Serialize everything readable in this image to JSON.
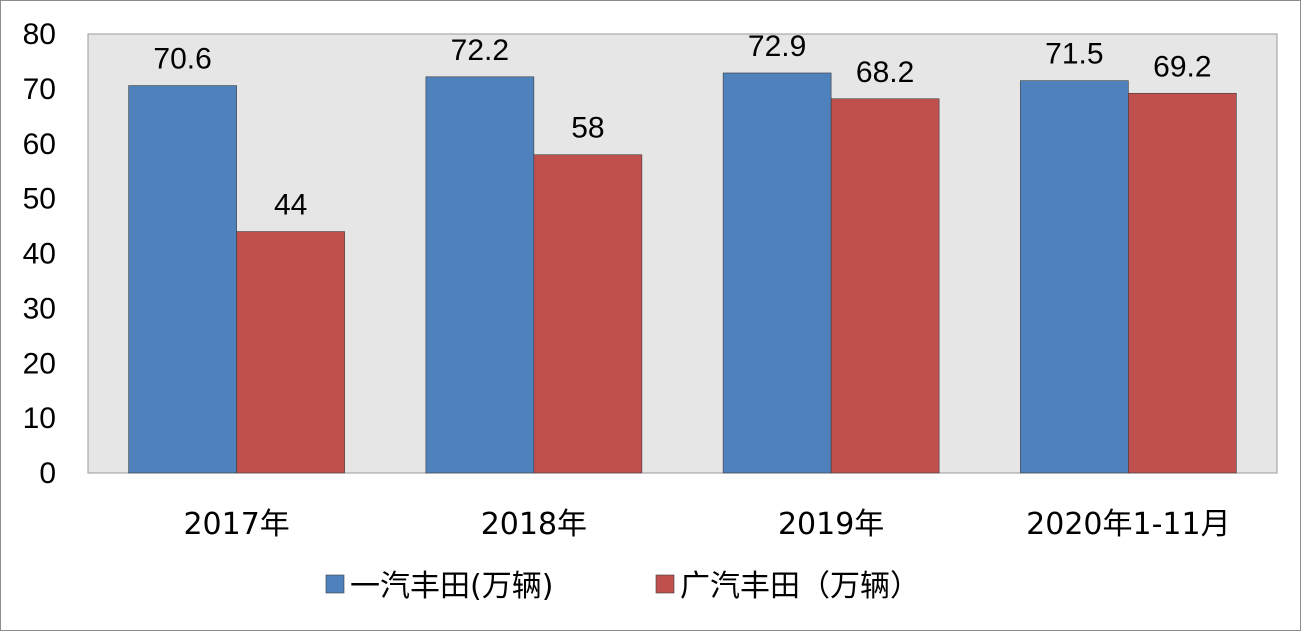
{
  "chart_data": {
    "type": "bar",
    "title": "",
    "xlabel": "",
    "ylabel": "",
    "categories": [
      "2017年",
      "2018年",
      "2019年",
      "2020年1-11月"
    ],
    "series": [
      {
        "name": "一汽丰田(万辆)",
        "values": [
          70.6,
          72.2,
          72.9,
          71.5
        ],
        "color": "#4f81bd",
        "labels": [
          "70.6",
          "72.2",
          "72.9",
          "71.5"
        ]
      },
      {
        "name": "广汽丰田（万辆）",
        "values": [
          44,
          58,
          68.2,
          69.2
        ],
        "color": "#c0504d",
        "labels": [
          "44",
          "58",
          "68.2",
          "69.2"
        ]
      }
    ],
    "ylim": [
      0,
      80
    ],
    "yticks": [
      0,
      10,
      20,
      30,
      40,
      50,
      60,
      70,
      80
    ],
    "grid": false,
    "plot_background": "#e6e6e6",
    "legend_position": "bottom"
  }
}
